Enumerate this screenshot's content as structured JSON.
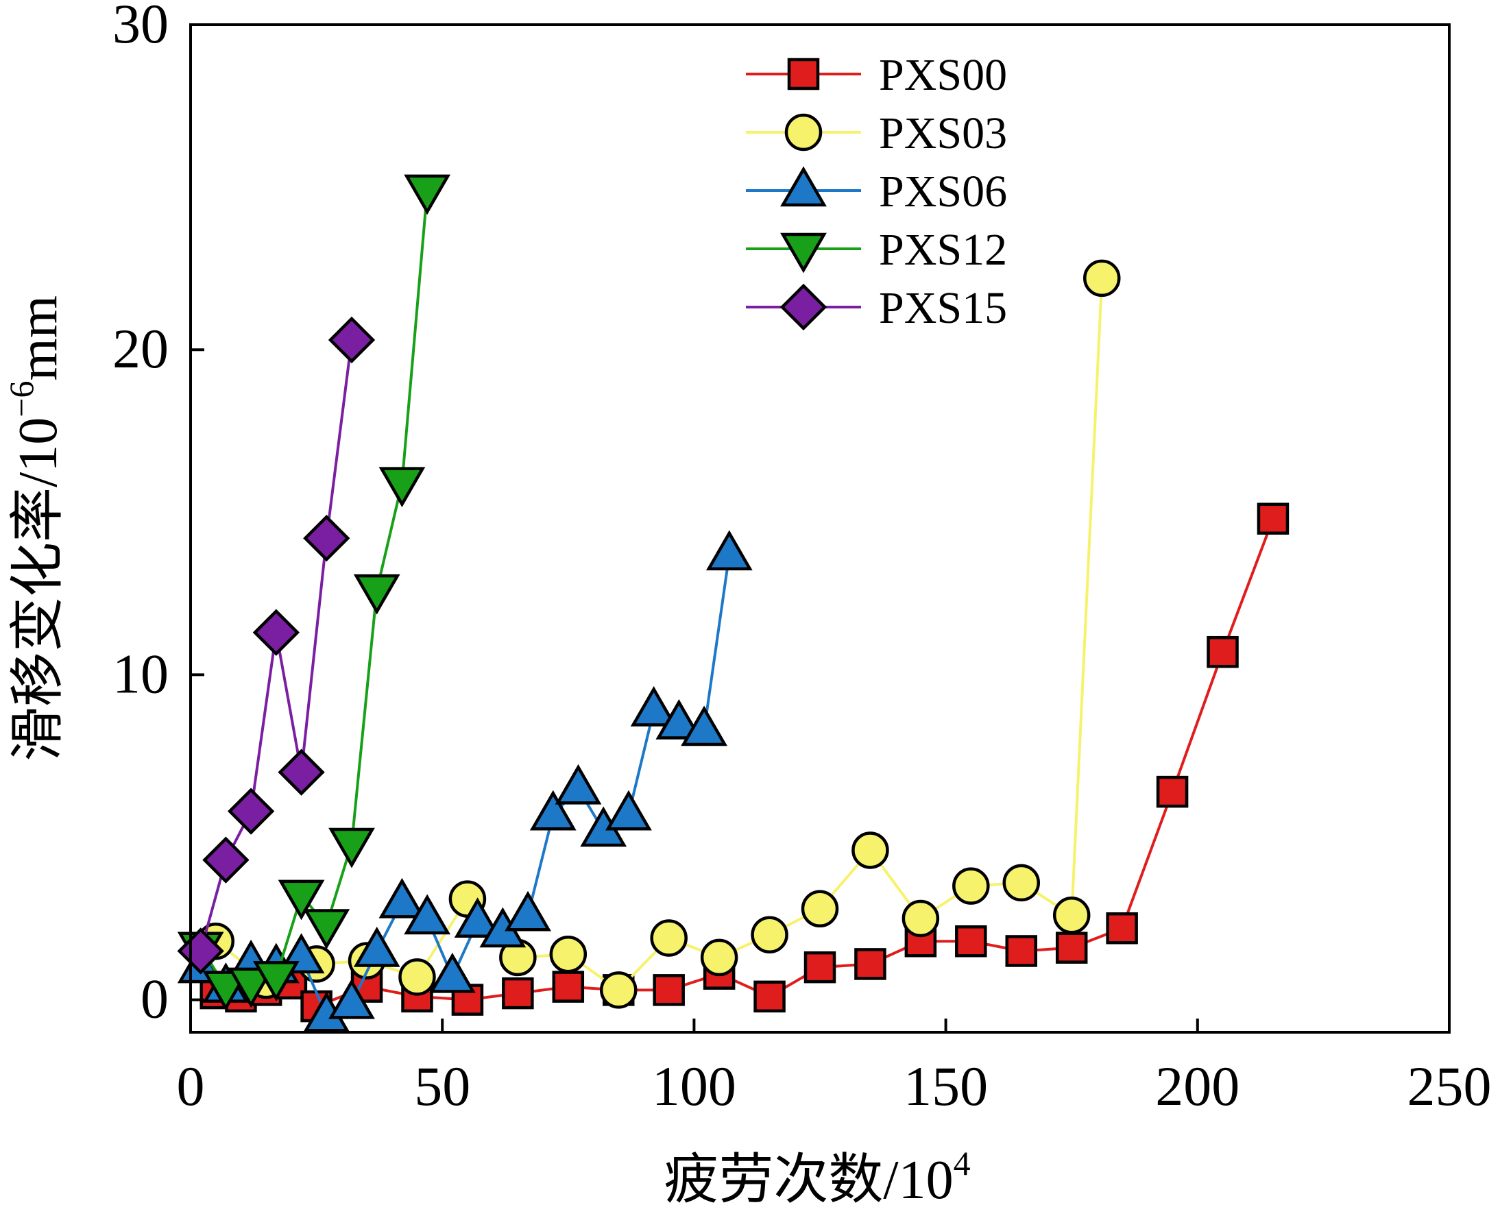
{
  "chart_data": {
    "type": "line",
    "xlabel": "疲劳次数/10",
    "xlabel_sup": "4",
    "ylabel": "滑移变化率/10",
    "ylabel_sup": "−6",
    "ylabel_unit": "mm",
    "xlim": [
      0,
      250
    ],
    "ylim": [
      -1,
      30
    ],
    "xticks": [
      0,
      50,
      100,
      150,
      200,
      250
    ],
    "yticks": [
      0,
      10,
      20,
      30
    ],
    "xtick_labels": [
      "0",
      "50",
      "100",
      "150",
      "200",
      "250"
    ],
    "ytick_labels": [
      "0",
      "10",
      "20",
      "30"
    ],
    "grid": false,
    "legend_position": "top-center",
    "series": [
      {
        "name": "PXS00",
        "color": "#e01d1d",
        "marker": "square",
        "x": [
          5,
          10,
          15,
          20,
          25,
          35,
          45,
          55,
          65,
          75,
          85,
          95,
          105,
          115,
          125,
          135,
          145,
          155,
          165,
          175,
          185,
          195,
          205,
          215
        ],
        "y": [
          0.2,
          0.1,
          0.3,
          0.5,
          -0.2,
          0.4,
          0.1,
          0.0,
          0.2,
          0.4,
          0.3,
          0.3,
          0.8,
          0.1,
          1.0,
          1.1,
          1.8,
          1.8,
          1.5,
          1.6,
          2.2,
          6.4,
          10.7,
          14.8
        ]
      },
      {
        "name": "PXS03",
        "color": "#f7f26b",
        "marker": "circle",
        "x": [
          5,
          15,
          25,
          35,
          45,
          55,
          65,
          75,
          85,
          95,
          105,
          115,
          125,
          135,
          145,
          155,
          165,
          175,
          181
        ],
        "y": [
          1.8,
          0.6,
          1.1,
          1.2,
          0.7,
          3.1,
          1.3,
          1.4,
          0.3,
          1.9,
          1.3,
          2.0,
          2.8,
          4.6,
          2.5,
          3.5,
          3.6,
          2.6,
          22.2
        ]
      },
      {
        "name": "PXS06",
        "color": "#1e78c8",
        "marker": "triangle-up",
        "x": [
          2,
          7,
          12,
          17,
          22,
          27,
          32,
          37,
          42,
          47,
          52,
          57,
          62,
          67,
          72,
          77,
          82,
          87,
          92,
          97,
          102,
          107
        ],
        "y": [
          1.0,
          0.4,
          1.1,
          1.0,
          1.3,
          -0.5,
          -0.1,
          1.5,
          3.0,
          2.5,
          0.7,
          2.4,
          2.1,
          2.6,
          5.7,
          6.5,
          5.2,
          5.7,
          8.9,
          8.5,
          8.3,
          13.7
        ]
      },
      {
        "name": "PXS12",
        "color": "#18a018",
        "marker": "triangle-down",
        "x": [
          2,
          7,
          12,
          17,
          22,
          27,
          32,
          37,
          42,
          47
        ],
        "y": [
          1.6,
          0.4,
          0.5,
          0.7,
          3.2,
          2.3,
          4.8,
          12.6,
          15.9,
          24.9
        ]
      },
      {
        "name": "PXS15",
        "color": "#7b1fa2",
        "marker": "diamond",
        "x": [
          2,
          7,
          12,
          17,
          22,
          27,
          32
        ],
        "y": [
          1.5,
          4.3,
          5.8,
          11.3,
          7.0,
          14.2,
          20.3
        ]
      }
    ]
  }
}
